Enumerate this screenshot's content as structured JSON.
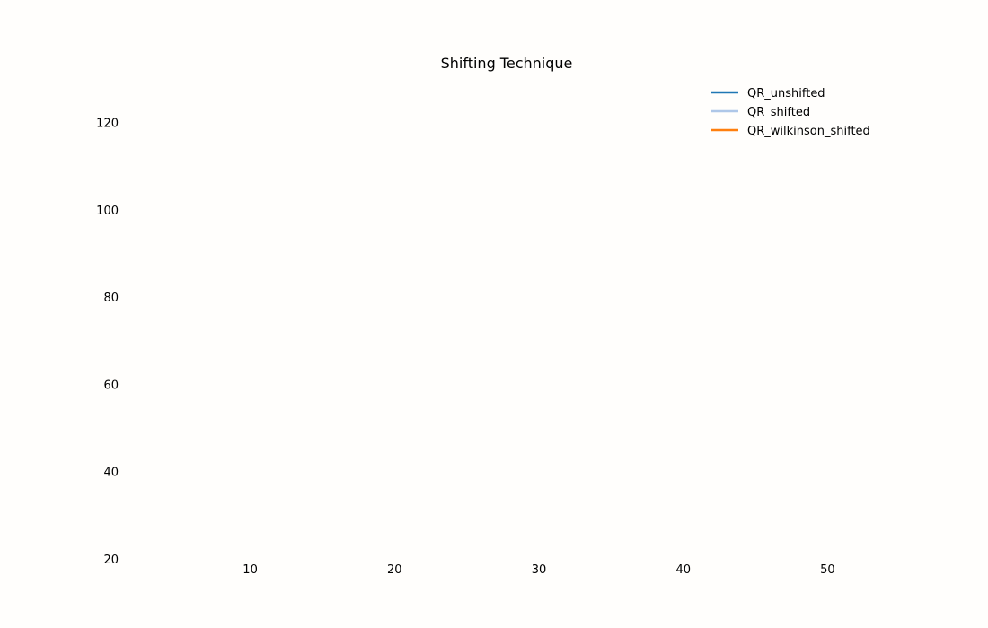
{
  "chart_data": {
    "type": "line",
    "title": "Shifting Technique",
    "xlabel": "",
    "ylabel": "",
    "x_ticks": [
      10,
      20,
      30,
      40,
      50
    ],
    "y_ticks": [
      20,
      40,
      60,
      80,
      100,
      120
    ],
    "xlim": [
      2,
      58
    ],
    "ylim": [
      20,
      130
    ],
    "grid": false,
    "legend": "top-right",
    "series": [
      {
        "name": "QR_unshifted",
        "color": "#1f77b4",
        "x": [],
        "y": []
      },
      {
        "name": "QR_shifted",
        "color": "#aec7e8",
        "x": [],
        "y": []
      },
      {
        "name": "QR_wilkinson_shifted",
        "color": "#ff7f0e",
        "x": [],
        "y": []
      }
    ]
  }
}
